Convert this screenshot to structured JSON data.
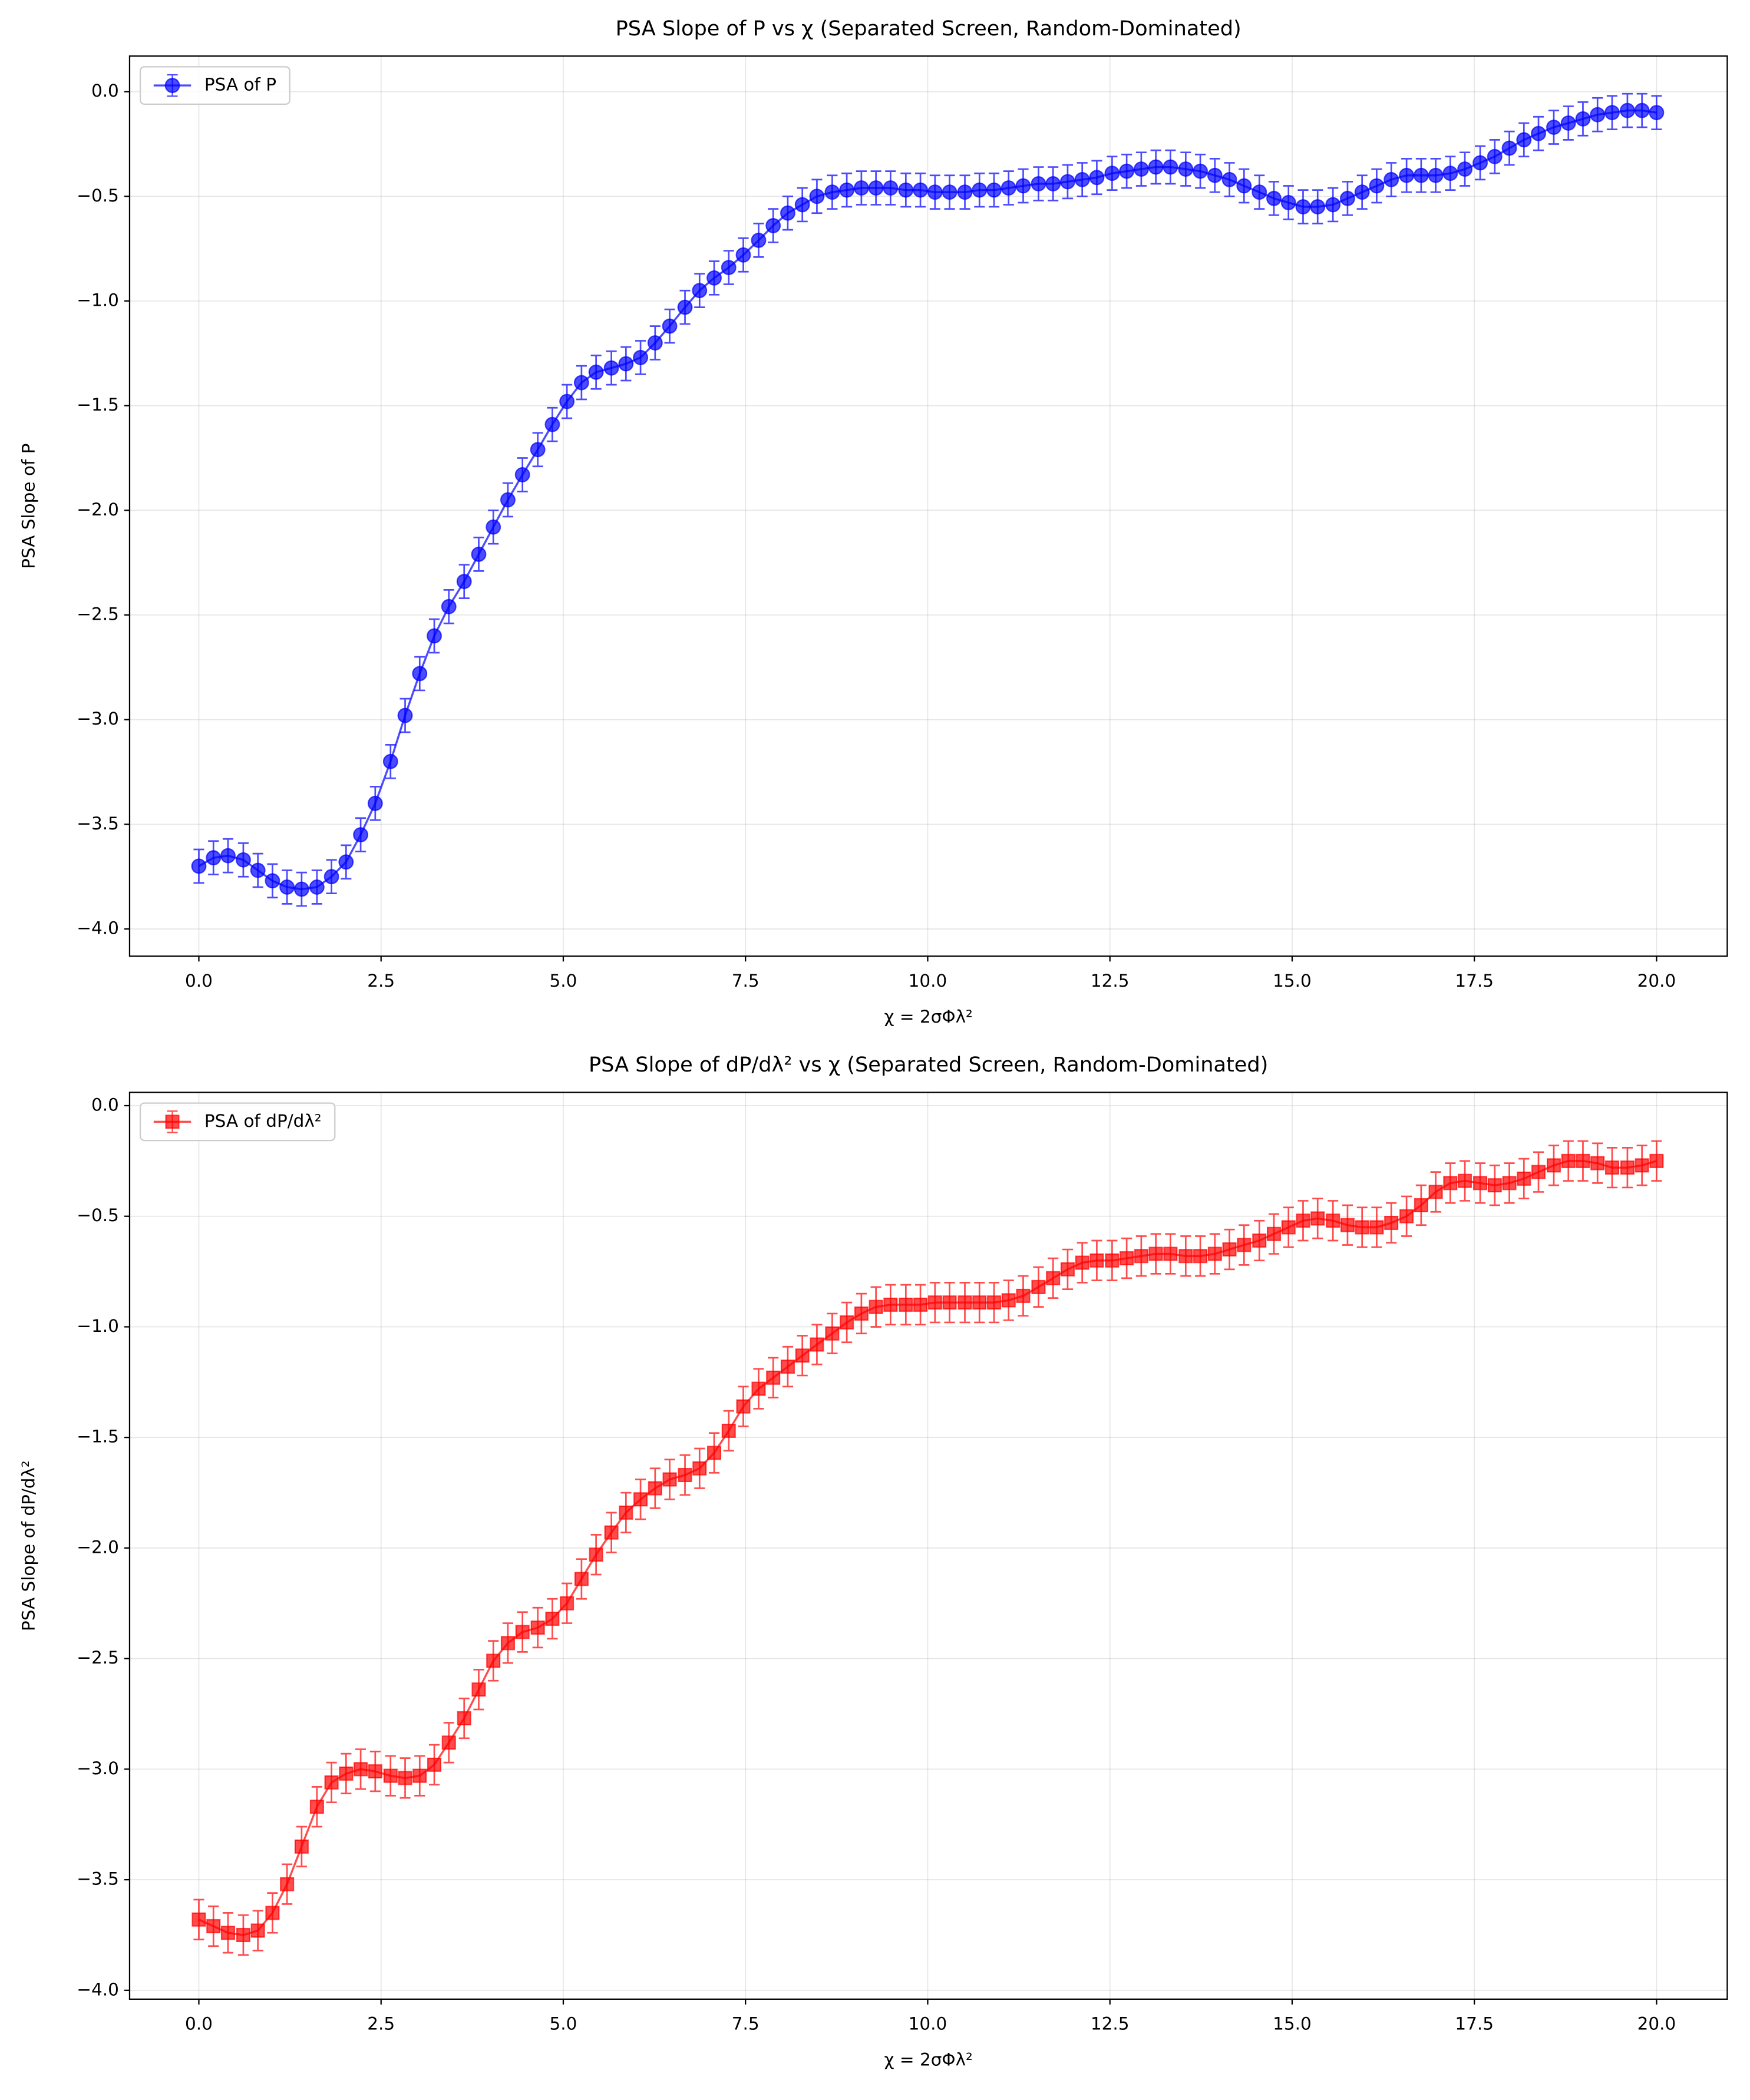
{
  "chart_data": [
    {
      "type": "errorbar",
      "title": "PSA Slope of P vs χ (Separated Screen, Random-Dominated)",
      "xlabel": "χ = 2σΦλ²",
      "ylabel": "PSA Slope of P",
      "marker": "circle",
      "legend": "upper left",
      "grid": true,
      "error": 0.08,
      "xlim": [
        -0.95,
        20.97
      ],
      "ylim": [
        -4.13,
        0.17
      ],
      "xticks": [
        {
          "value": 0,
          "label": "0.0"
        },
        {
          "value": 2.5,
          "label": "2.5"
        },
        {
          "value": 5,
          "label": "5.0"
        },
        {
          "value": 7.5,
          "label": "7.5"
        },
        {
          "value": 10,
          "label": "10.0"
        },
        {
          "value": 12.5,
          "label": "12.5"
        },
        {
          "value": 15,
          "label": "15.0"
        },
        {
          "value": 17.5,
          "label": "17.5"
        },
        {
          "value": 20,
          "label": "20.0"
        }
      ],
      "yticks": [
        {
          "value": 0,
          "label": "0.0"
        },
        {
          "value": -0.5,
          "label": "−0.5"
        },
        {
          "value": -1,
          "label": "−1.0"
        },
        {
          "value": -1.5,
          "label": "−1.5"
        },
        {
          "value": -2,
          "label": "−2.0"
        },
        {
          "value": -2.5,
          "label": "−2.5"
        },
        {
          "value": -3,
          "label": "−3.0"
        },
        {
          "value": -3.5,
          "label": "−3.5"
        },
        {
          "value": -4,
          "label": "−4.0"
        }
      ],
      "x": [
        0,
        0.2,
        0.4,
        0.61,
        0.81,
        1.01,
        1.21,
        1.41,
        1.62,
        1.82,
        2.02,
        2.22,
        2.42,
        2.63,
        2.83,
        3.03,
        3.23,
        3.43,
        3.64,
        3.84,
        4.04,
        4.24,
        4.44,
        4.65,
        4.85,
        5.05,
        5.25,
        5.45,
        5.66,
        5.86,
        6.06,
        6.26,
        6.46,
        6.67,
        6.87,
        7.07,
        7.27,
        7.47,
        7.68,
        7.88,
        8.08,
        8.28,
        8.48,
        8.69,
        8.89,
        9.09,
        9.29,
        9.49,
        9.7,
        9.9,
        10.1,
        10.3,
        10.51,
        10.71,
        10.91,
        11.11,
        11.31,
        11.52,
        11.72,
        11.92,
        12.12,
        12.32,
        12.53,
        12.73,
        12.93,
        13.13,
        13.33,
        13.54,
        13.74,
        13.94,
        14.14,
        14.34,
        14.55,
        14.75,
        14.95,
        15.15,
        15.35,
        15.56,
        15.76,
        15.96,
        16.16,
        16.36,
        16.57,
        16.77,
        16.97,
        17.17,
        17.37,
        17.58,
        17.78,
        17.98,
        18.18,
        18.38,
        18.59,
        18.79,
        18.99,
        19.19,
        19.39,
        19.6,
        19.8,
        20
      ],
      "series": [
        {
          "name": "PSA of P",
          "color": "#0000ff",
          "values": [
            -3.7,
            -3.66,
            -3.65,
            -3.67,
            -3.72,
            -3.77,
            -3.8,
            -3.81,
            -3.8,
            -3.75,
            -3.68,
            -3.55,
            -3.4,
            -3.2,
            -2.98,
            -2.78,
            -2.6,
            -2.46,
            -2.34,
            -2.21,
            -2.08,
            -1.95,
            -1.83,
            -1.71,
            -1.59,
            -1.48,
            -1.39,
            -1.34,
            -1.32,
            -1.3,
            -1.27,
            -1.2,
            -1.12,
            -1.03,
            -0.95,
            -0.89,
            -0.84,
            -0.78,
            -0.71,
            -0.64,
            -0.58,
            -0.54,
            -0.5,
            -0.48,
            -0.47,
            -0.46,
            -0.46,
            -0.46,
            -0.47,
            -0.47,
            -0.48,
            -0.48,
            -0.48,
            -0.47,
            -0.47,
            -0.46,
            -0.45,
            -0.44,
            -0.44,
            -0.43,
            -0.42,
            -0.41,
            -0.39,
            -0.38,
            -0.37,
            -0.36,
            -0.36,
            -0.37,
            -0.38,
            -0.4,
            -0.42,
            -0.45,
            -0.48,
            -0.51,
            -0.53,
            -0.55,
            -0.55,
            -0.54,
            -0.51,
            -0.48,
            -0.45,
            -0.42,
            -0.4,
            -0.4,
            -0.4,
            -0.39,
            -0.37,
            -0.34,
            -0.31,
            -0.27,
            -0.23,
            -0.2,
            -0.17,
            -0.15,
            -0.13,
            -0.11,
            -0.1,
            -0.09,
            -0.09,
            -0.1
          ]
        }
      ]
    },
    {
      "type": "errorbar",
      "title": "PSA Slope of dP/dλ² vs χ (Separated Screen, Random-Dominated)",
      "xlabel": "χ = 2σΦλ²",
      "ylabel": "PSA Slope of dP/dλ²",
      "marker": "square",
      "legend": "upper left",
      "grid": true,
      "error": 0.09,
      "xlim": [
        -0.95,
        20.97
      ],
      "ylim": [
        -4.04,
        0.06
      ],
      "xticks": [
        {
          "value": 0,
          "label": "0.0"
        },
        {
          "value": 2.5,
          "label": "2.5"
        },
        {
          "value": 5,
          "label": "5.0"
        },
        {
          "value": 7.5,
          "label": "7.5"
        },
        {
          "value": 10,
          "label": "10.0"
        },
        {
          "value": 12.5,
          "label": "12.5"
        },
        {
          "value": 15,
          "label": "15.0"
        },
        {
          "value": 17.5,
          "label": "17.5"
        },
        {
          "value": 20,
          "label": "20.0"
        }
      ],
      "yticks": [
        {
          "value": 0,
          "label": "0.0"
        },
        {
          "value": -0.5,
          "label": "−0.5"
        },
        {
          "value": -1,
          "label": "−1.0"
        },
        {
          "value": -1.5,
          "label": "−1.5"
        },
        {
          "value": -2,
          "label": "−2.0"
        },
        {
          "value": -2.5,
          "label": "−2.5"
        },
        {
          "value": -3,
          "label": "−3.0"
        },
        {
          "value": -3.5,
          "label": "−3.5"
        },
        {
          "value": -4,
          "label": "−4.0"
        }
      ],
      "x": [
        0,
        0.2,
        0.4,
        0.61,
        0.81,
        1.01,
        1.21,
        1.41,
        1.62,
        1.82,
        2.02,
        2.22,
        2.42,
        2.63,
        2.83,
        3.03,
        3.23,
        3.43,
        3.64,
        3.84,
        4.04,
        4.24,
        4.44,
        4.65,
        4.85,
        5.05,
        5.25,
        5.45,
        5.66,
        5.86,
        6.06,
        6.26,
        6.46,
        6.67,
        6.87,
        7.07,
        7.27,
        7.47,
        7.68,
        7.88,
        8.08,
        8.28,
        8.48,
        8.69,
        8.89,
        9.09,
        9.29,
        9.49,
        9.7,
        9.9,
        10.1,
        10.3,
        10.51,
        10.71,
        10.91,
        11.11,
        11.31,
        11.52,
        11.72,
        11.92,
        12.12,
        12.32,
        12.53,
        12.73,
        12.93,
        13.13,
        13.33,
        13.54,
        13.74,
        13.94,
        14.14,
        14.34,
        14.55,
        14.75,
        14.95,
        15.15,
        15.35,
        15.56,
        15.76,
        15.96,
        16.16,
        16.36,
        16.57,
        16.77,
        16.97,
        17.17,
        17.37,
        17.58,
        17.78,
        17.98,
        18.18,
        18.38,
        18.59,
        18.79,
        18.99,
        19.19,
        19.39,
        19.6,
        19.8,
        20
      ],
      "series": [
        {
          "name": "PSA of dP/dλ²",
          "color": "#ff0000",
          "values": [
            -3.68,
            -3.71,
            -3.74,
            -3.75,
            -3.73,
            -3.65,
            -3.52,
            -3.35,
            -3.17,
            -3.06,
            -3.02,
            -3.0,
            -3.01,
            -3.03,
            -3.04,
            -3.03,
            -2.98,
            -2.88,
            -2.77,
            -2.64,
            -2.51,
            -2.43,
            -2.38,
            -2.36,
            -2.32,
            -2.25,
            -2.14,
            -2.03,
            -1.93,
            -1.84,
            -1.78,
            -1.73,
            -1.69,
            -1.67,
            -1.64,
            -1.57,
            -1.47,
            -1.36,
            -1.28,
            -1.23,
            -1.18,
            -1.13,
            -1.08,
            -1.03,
            -0.98,
            -0.94,
            -0.91,
            -0.9,
            -0.9,
            -0.9,
            -0.89,
            -0.89,
            -0.89,
            -0.89,
            -0.89,
            -0.88,
            -0.86,
            -0.82,
            -0.78,
            -0.74,
            -0.71,
            -0.7,
            -0.7,
            -0.69,
            -0.68,
            -0.67,
            -0.67,
            -0.68,
            -0.68,
            -0.67,
            -0.65,
            -0.63,
            -0.61,
            -0.58,
            -0.55,
            -0.52,
            -0.51,
            -0.52,
            -0.54,
            -0.55,
            -0.55,
            -0.53,
            -0.5,
            -0.45,
            -0.39,
            -0.35,
            -0.34,
            -0.35,
            -0.36,
            -0.35,
            -0.33,
            -0.3,
            -0.27,
            -0.25,
            -0.25,
            -0.26,
            -0.28,
            -0.28,
            -0.27,
            -0.25
          ]
        }
      ]
    }
  ]
}
